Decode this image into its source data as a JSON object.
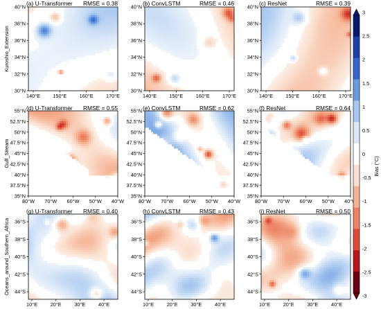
{
  "chart_data": {
    "type": "heatmap",
    "rows": [
      {
        "label": "Kuroshio_Extension",
        "x_ticks": [
          "140°E",
          "150°E",
          "160°E",
          "170°E"
        ],
        "y_ticks": [
          "40°N",
          "38°N",
          "36°N",
          "34°N",
          "32°N",
          "30°N"
        ],
        "panels": [
          {
            "title": "(a) U-Transformer",
            "rmse": "RMSE = 0.38",
            "seed": 11
          },
          {
            "title": "(b) ConvLSTM",
            "rmse": "RMSE = 0.46",
            "seed": 23
          },
          {
            "title": "(c) ResNet",
            "rmse": "RMSE = 0.39",
            "seed": 37
          }
        ]
      },
      {
        "label": "Gulf_Stream",
        "x_ticks": [
          "80°W",
          "70°W",
          "60°W",
          "50°W",
          "40°W"
        ],
        "y_ticks": [
          "55°N",
          "52.5°N",
          "50°N",
          "47.5°N",
          "45°N",
          "42.5°N",
          "40°N",
          "37.5°N",
          "35°N"
        ],
        "panels": [
          {
            "title": "(d) U-Transformer",
            "rmse": "RMSE = 0.55",
            "seed": 51
          },
          {
            "title": "(e) ConvLSTM",
            "rmse": "RMSE = 0.62",
            "seed": 67
          },
          {
            "title": "(f) ResNet",
            "rmse": "RMSE = 0.64",
            "seed": 79
          }
        ]
      },
      {
        "label": "Oceans_around_Southern_Africa",
        "x_ticks": [
          "10°E",
          "20°E",
          "30°E",
          "40°E"
        ],
        "y_ticks": [
          "36°S",
          "38°S",
          "40°S",
          "42°S",
          "44°S"
        ],
        "panels": [
          {
            "title": "(g) U-Transformer",
            "rmse": "RMSE = 0.40",
            "seed": 83
          },
          {
            "title": "(h) ConvLSTM",
            "rmse": "RMSE = 0.43",
            "seed": 97
          },
          {
            "title": "(i) ResNet",
            "rmse": "RMSE = 0.50",
            "seed": 101
          }
        ]
      }
    ],
    "colorbar": {
      "label": "Bias (°C)",
      "min": -3,
      "max": 3,
      "ticks": [
        "3",
        "2.5",
        "2",
        "1.5",
        "1",
        "0.5",
        "0",
        "-0.5",
        "-1",
        "-1.5",
        "-2",
        "-2.5",
        "-3"
      ],
      "colors": [
        "#0a1a6e",
        "#1c3fa8",
        "#3366cc",
        "#6a9be0",
        "#a9c8f0",
        "#dce9f8",
        "#ffffff",
        "#fbe0d0",
        "#f5b394",
        "#ec8262",
        "#dc4a35",
        "#b8151c",
        "#6b0012"
      ]
    }
  }
}
